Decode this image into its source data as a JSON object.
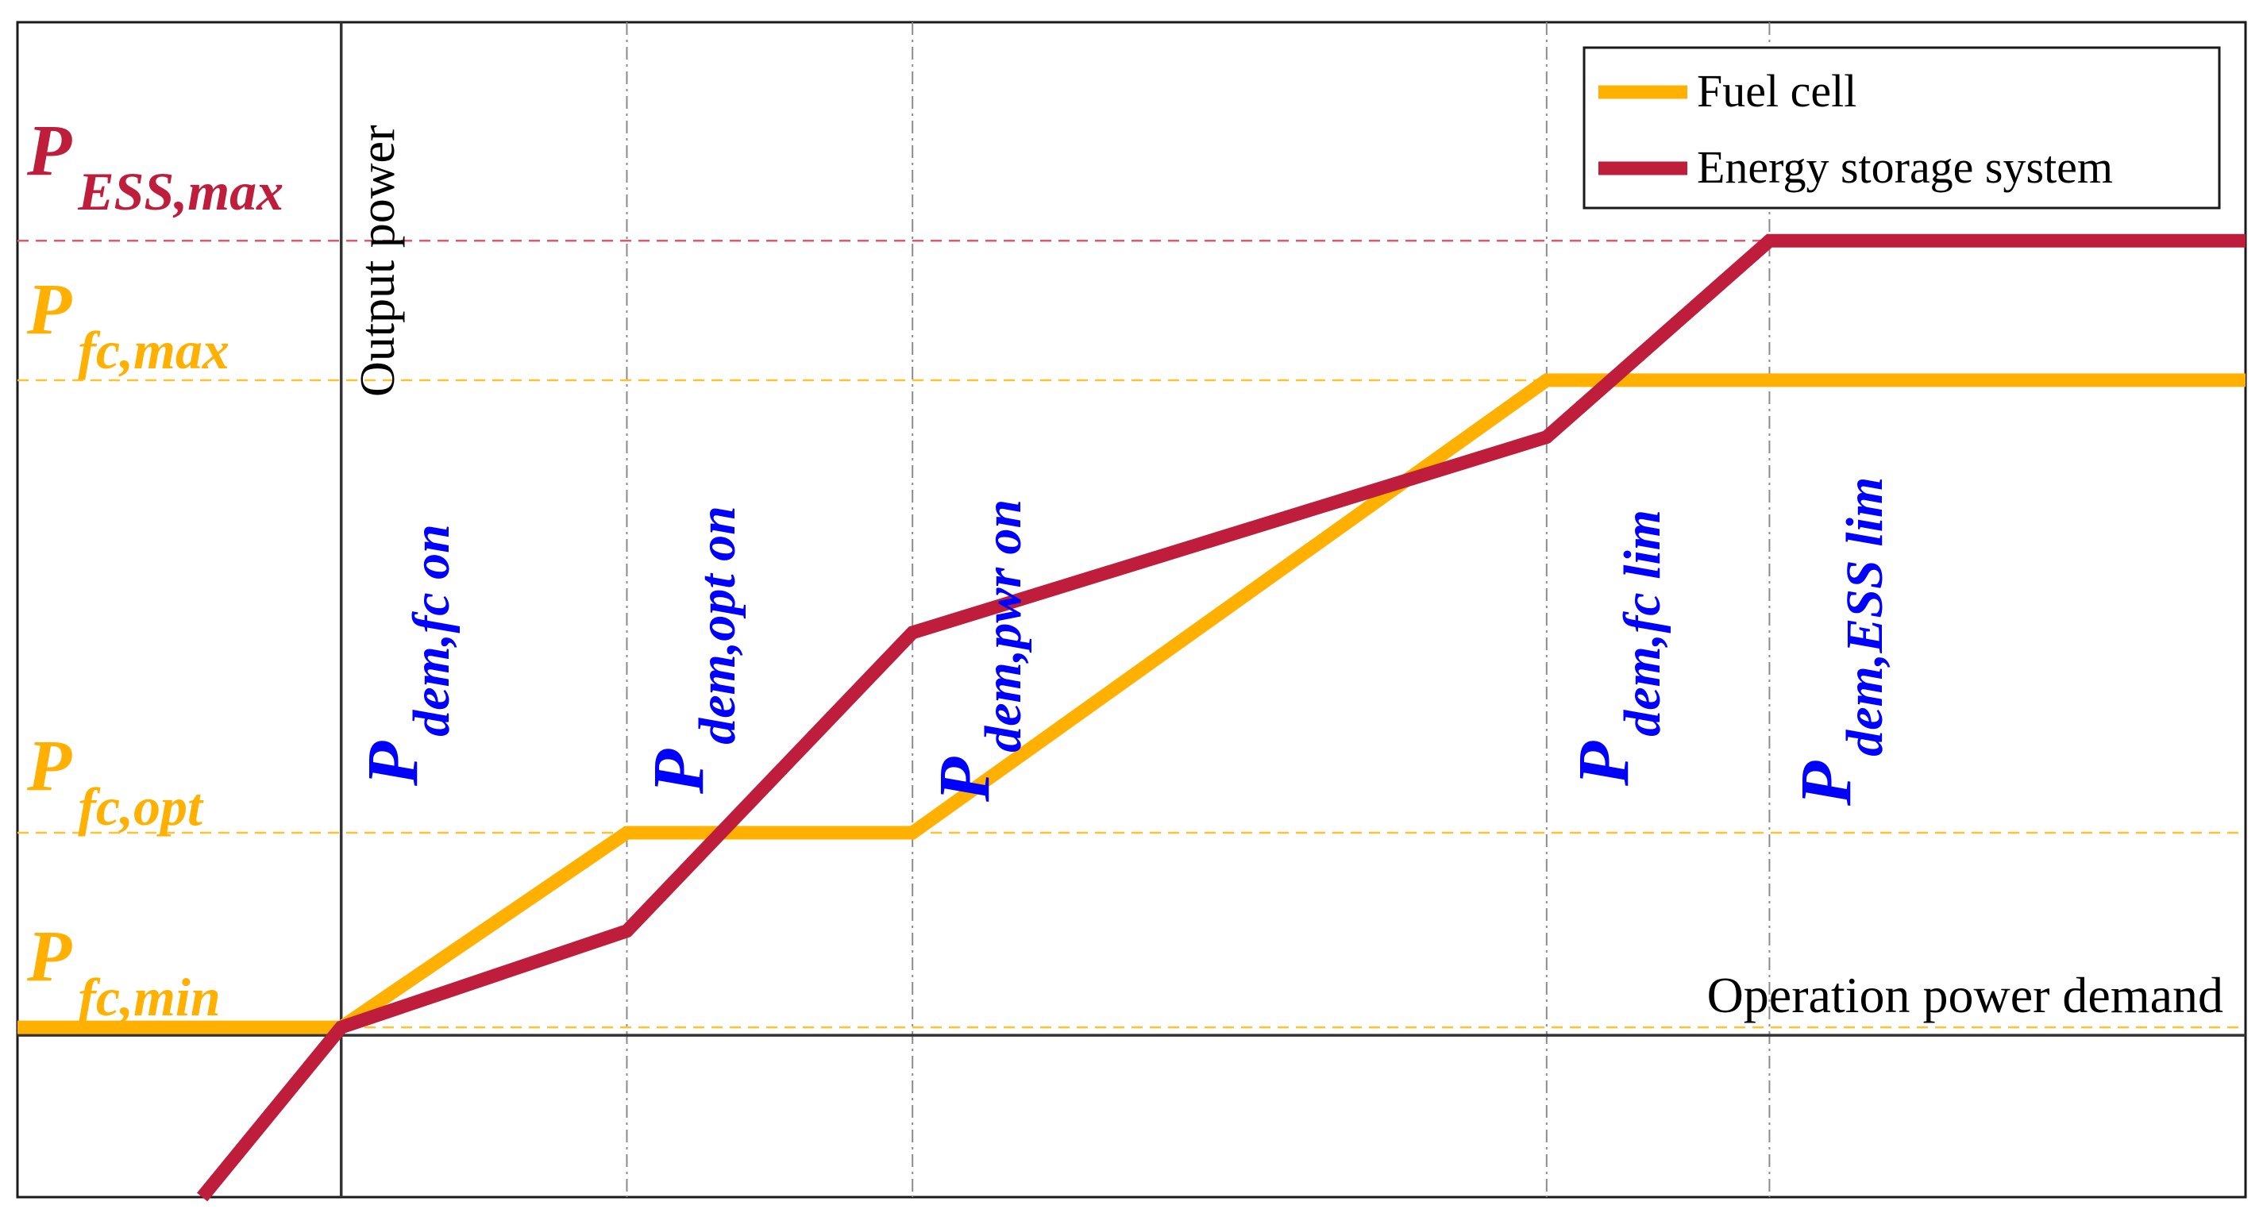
{
  "colors": {
    "fuel_cell": "#FFB000",
    "ess": "#BE1E3C",
    "label_blue": "#0000FF",
    "axis": "#333333",
    "divider": "#8C8C8C",
    "ess_guide": "#E05A6E",
    "fc_guide": "#FFC233"
  },
  "chart_data": {
    "type": "line",
    "xlabel": "Operation power demand",
    "ylabel": "Output power",
    "y_levels": [
      {
        "key": "ess_max",
        "main": "P",
        "sub": "ESS,max",
        "value": 0.857,
        "color": "#BE1E3C",
        "guide_color": "#E05A6E"
      },
      {
        "key": "fc_max",
        "main": "P",
        "sub": "fc,max",
        "value": 0.705,
        "color": "#FFB000",
        "guide_color": "#FFC233"
      },
      {
        "key": "fc_opt",
        "main": "P",
        "sub": "fc,opt",
        "value": 0.212,
        "color": "#FFB000",
        "guide_color": "#FFC233"
      },
      {
        "key": "fc_min",
        "main": "P",
        "sub": "fc,min",
        "value": 0.0,
        "color": "#FFB000",
        "guide_color": "#FFC233"
      }
    ],
    "x_thresholds": [
      {
        "key": "fc_on",
        "main": "P",
        "sub": "dem,fc on",
        "value": 0.0
      },
      {
        "key": "opt_on",
        "main": "P",
        "sub": "dem,opt on",
        "value": 0.15
      },
      {
        "key": "pwr_on",
        "main": "P",
        "sub": "dem,pwr on",
        "value": 0.3
      },
      {
        "key": "fc_lim",
        "main": "P",
        "sub": "dem,fc lim",
        "value": 0.633
      },
      {
        "key": "ess_lim",
        "main": "P",
        "sub": "dem,ESS lim",
        "value": 0.75
      }
    ],
    "series": [
      {
        "name": "Fuel cell",
        "color": "#FFB000",
        "x": [
          -0.17,
          0.0,
          0.15,
          0.3,
          0.633,
          1.0
        ],
        "y": [
          0.0,
          0.0,
          0.212,
          0.212,
          0.705,
          0.705
        ]
      },
      {
        "name": "Energy storage system",
        "color": "#BE1E3C",
        "x": [
          -0.073,
          0.0,
          0.15,
          0.3,
          0.633,
          0.75,
          1.0
        ],
        "y": [
          -0.185,
          0.0,
          0.105,
          0.43,
          0.643,
          0.857,
          0.857
        ]
      }
    ],
    "xlim": [
      -0.17,
      1.0
    ],
    "ylim": [
      -0.185,
      1.095
    ],
    "grid": false,
    "legend_position": "top-right"
  }
}
